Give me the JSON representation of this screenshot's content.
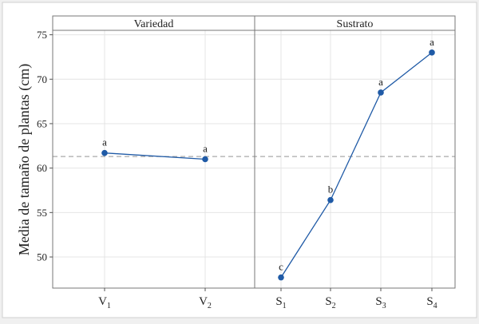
{
  "chart_data": {
    "type": "line",
    "ylabel": "Media de tamaño de plantas (cm)",
    "ylim": [
      46.5,
      75.5
    ],
    "yticks": [
      50,
      55,
      60,
      65,
      70,
      75
    ],
    "grid": true,
    "reference_line": {
      "value": 61.3,
      "style": "dashed"
    },
    "colors": {
      "series": "#1f5aa6",
      "reference": "#aaaaaa",
      "grid": "#e4e4e4"
    },
    "panels": [
      {
        "title": "Variedad",
        "categories": [
          {
            "base": "V",
            "sub": "1"
          },
          {
            "base": "V",
            "sub": "2"
          }
        ],
        "values": [
          61.7,
          61.0
        ],
        "letters": [
          "a",
          "a"
        ]
      },
      {
        "title": "Sustrato",
        "categories": [
          {
            "base": "S",
            "sub": "1"
          },
          {
            "base": "S",
            "sub": "2"
          },
          {
            "base": "S",
            "sub": "3"
          },
          {
            "base": "S",
            "sub": "4"
          }
        ],
        "values": [
          47.7,
          56.4,
          68.5,
          73.0
        ],
        "letters": [
          "c",
          "b",
          "a",
          "a"
        ]
      }
    ]
  }
}
